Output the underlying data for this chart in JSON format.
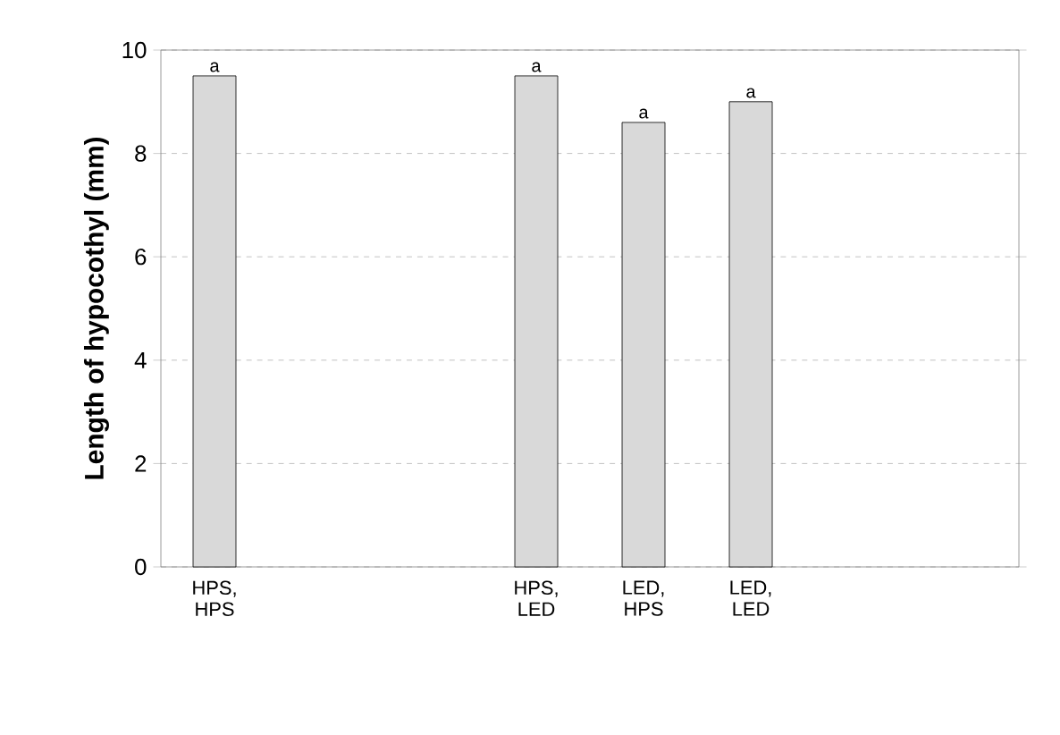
{
  "chart_data": {
    "type": "bar",
    "ylabel": "Length of hypocothyl (mm)",
    "categories": [
      "HPS, HPS",
      null,
      null,
      "HPS, LED",
      "LED, HPS",
      "LED, LED",
      null,
      null
    ],
    "values": [
      9.5,
      null,
      null,
      9.5,
      8.6,
      9.0,
      null,
      null
    ],
    "color": "#d9d9d9",
    "ylim": [
      0,
      10
    ],
    "yticks": [
      0,
      2,
      4,
      6,
      8,
      10
    ],
    "grid": "y",
    "annotations": [
      {
        "text": "a",
        "x": "HPS, HPS",
        "y": 9.5
      },
      {
        "text": "a",
        "x": "HPS, LED",
        "y": 9.5
      },
      {
        "text": "a",
        "x": "LED, HPS",
        "y": 8.6
      },
      {
        "text": "a",
        "x": "LED, LED",
        "y": 9.0
      }
    ]
  }
}
